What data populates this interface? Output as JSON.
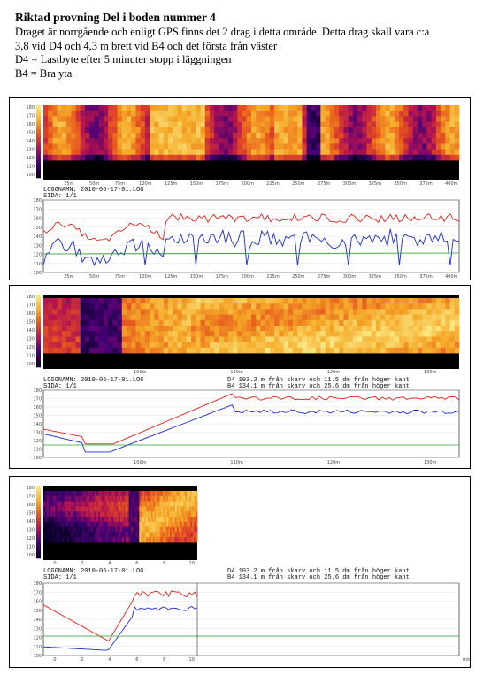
{
  "document": {
    "title": "Riktad provning Del i boden nummer 4",
    "body_line_1": "Draget är norrgående och enligt GPS finns det 2 drag i detta område. Detta drag skall vara c:a",
    "body_line_2": "3,8 vid D4 och 4,3 m brett vid B4 och det första från väster",
    "body_line_3": "D4 = Lastbyte efter 5 minuter stopp i läggningen",
    "body_line_4": "B4 = Bra yta"
  },
  "panels": [
    {
      "log_line": "LOGGNAMN: 2010-06-17-01.LOG",
      "page_line": "SIDA: 1/1",
      "heat_x_ticks": [
        "25m",
        "50m",
        "75m",
        "100m",
        "125m",
        "150m",
        "175m",
        "200m",
        "225m",
        "250m",
        "275m",
        "300m",
        "325m",
        "350m",
        "375m",
        "400m"
      ],
      "line_x_ticks": [
        "25m",
        "50m",
        "75m",
        "100m",
        "125m",
        "150m",
        "175m",
        "200m",
        "225m",
        "250m",
        "275m",
        "300m",
        "325m",
        "350m",
        "375m",
        "400m"
      ]
    },
    {
      "log_line": "LOGGNAMN: 2010-06-17-01.LOG",
      "page_line": "SIDA: 1/1",
      "marker_d4": "D4 103.2 m från skarv och 11.5 dm från höger kant",
      "marker_b4": "B4 134.1 m från skarv och 25.6 dm från höger kant",
      "heat_x_ticks": [
        "100m",
        "110m",
        "120m",
        "130m"
      ],
      "line_x_ticks": [
        "100m",
        "110m",
        "120m",
        "130m"
      ]
    },
    {
      "log_line": "LOGGNAMN: 2010-06-17-01.LOG",
      "page_line": "SIDA: 1/1",
      "marker_d4": "D4 103.2 m från skarv och 11.5 dm från höger kant",
      "marker_b4": "B4 134.1 m från skarv och 25.6 dm från höger kant",
      "heat_x_ticks": [
        "0",
        "2",
        "4",
        "6",
        "8",
        "10"
      ],
      "line_x_ticks": [
        "0",
        "2",
        "4",
        "6",
        "8",
        "10"
      ],
      "right_axis_unit": "min"
    }
  ],
  "temp_scale_ticks": [
    "180",
    "170",
    "160",
    "150",
    "140",
    "130",
    "120",
    "110",
    "100"
  ],
  "colors": {
    "upper_line": "#e0201a",
    "lower_line": "#1a2ad0",
    "reference_line": "#2a9a2a"
  }
}
